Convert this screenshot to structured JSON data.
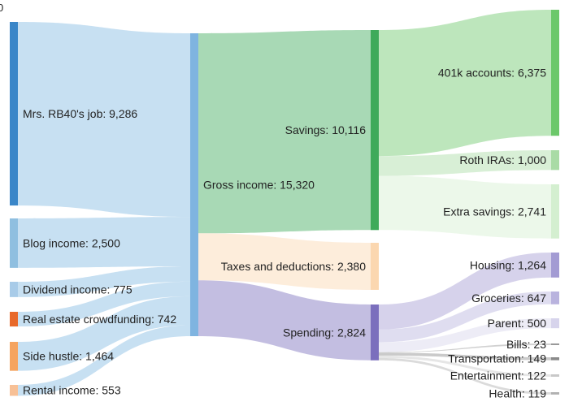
{
  "corner_text": "0",
  "chart_data": {
    "type": "sankey",
    "units_note": "",
    "nodes": [
      {
        "id": "job",
        "label": "Mrs. RB40's job: 9,286",
        "value": 9286,
        "color": "#3a86c8",
        "column": 0
      },
      {
        "id": "blog",
        "label": "Blog income: 2,500",
        "value": 2500,
        "color": "#8fbfe0",
        "column": 0
      },
      {
        "id": "dividend",
        "label": "Dividend income: 775",
        "value": 775,
        "color": "#a8cbe8",
        "column": 0
      },
      {
        "id": "realestate",
        "label": "Real estate crowdfunding: 742",
        "value": 742,
        "color": "#e8692a",
        "column": 0
      },
      {
        "id": "sidehustle",
        "label": "Side hustle: 1,464",
        "value": 1464,
        "color": "#f5a460",
        "column": 0
      },
      {
        "id": "rental",
        "label": "Rental income: 553",
        "value": 553,
        "color": "#f7c096",
        "column": 0
      },
      {
        "id": "gross",
        "label": "Gross income: 15,320",
        "value": 15320,
        "color": "#7fb4e0",
        "column": 1
      },
      {
        "id": "savings",
        "label": "Savings: 10,116",
        "value": 10116,
        "color": "#3faa5a",
        "column": 2
      },
      {
        "id": "taxes",
        "label": "Taxes and deductions: 2,380",
        "value": 2380,
        "color": "#fbd7b0",
        "column": 2
      },
      {
        "id": "spending",
        "label": "Spending: 2,824",
        "value": 2824,
        "color": "#7b6fbd",
        "column": 2
      },
      {
        "id": "k401",
        "label": "401k accounts: 6,375",
        "value": 6375,
        "color": "#6cc86a",
        "column": 3
      },
      {
        "id": "roth",
        "label": "Roth IRAs: 1,000",
        "value": 1000,
        "color": "#a9dba5",
        "column": 3
      },
      {
        "id": "extra",
        "label": "Extra savings: 2,741",
        "value": 2741,
        "color": "#d4efd0",
        "column": 3
      },
      {
        "id": "housing",
        "label": "Housing: 1,264",
        "value": 1264,
        "color": "#a39bd3",
        "column": 3
      },
      {
        "id": "groceries",
        "label": "Groceries: 647",
        "value": 647,
        "color": "#b9b3de",
        "column": 3
      },
      {
        "id": "parent",
        "label": "Parent: 500",
        "value": 500,
        "color": "#d7d4ec",
        "column": 3
      },
      {
        "id": "bills",
        "label": "Bills: 23",
        "value": 23,
        "color": "#999999",
        "column": 3
      },
      {
        "id": "transport",
        "label": "Transportation: 149",
        "value": 149,
        "color": "#8a8a8a",
        "column": 3
      },
      {
        "id": "entertain",
        "label": "Entertainment: 122",
        "value": 122,
        "color": "#c8c8c8",
        "column": 3
      },
      {
        "id": "health",
        "label": "Health: 119",
        "value": 119,
        "color": "#b0b0b0",
        "column": 3
      }
    ],
    "links": [
      {
        "source": "job",
        "target": "gross",
        "value": 9286
      },
      {
        "source": "blog",
        "target": "gross",
        "value": 2500
      },
      {
        "source": "dividend",
        "target": "gross",
        "value": 775
      },
      {
        "source": "realestate",
        "target": "gross",
        "value": 742
      },
      {
        "source": "sidehustle",
        "target": "gross",
        "value": 1464
      },
      {
        "source": "rental",
        "target": "gross",
        "value": 553
      },
      {
        "source": "gross",
        "target": "savings",
        "value": 10116
      },
      {
        "source": "gross",
        "target": "taxes",
        "value": 2380
      },
      {
        "source": "gross",
        "target": "spending",
        "value": 2824
      },
      {
        "source": "savings",
        "target": "k401",
        "value": 6375
      },
      {
        "source": "savings",
        "target": "roth",
        "value": 1000
      },
      {
        "source": "savings",
        "target": "extra",
        "value": 2741
      },
      {
        "source": "spending",
        "target": "housing",
        "value": 1264
      },
      {
        "source": "spending",
        "target": "groceries",
        "value": 647
      },
      {
        "source": "spending",
        "target": "parent",
        "value": 500
      },
      {
        "source": "spending",
        "target": "bills",
        "value": 23
      },
      {
        "source": "spending",
        "target": "transport",
        "value": 149
      },
      {
        "source": "spending",
        "target": "entertain",
        "value": 122
      },
      {
        "source": "spending",
        "target": "health",
        "value": 119
      }
    ]
  }
}
